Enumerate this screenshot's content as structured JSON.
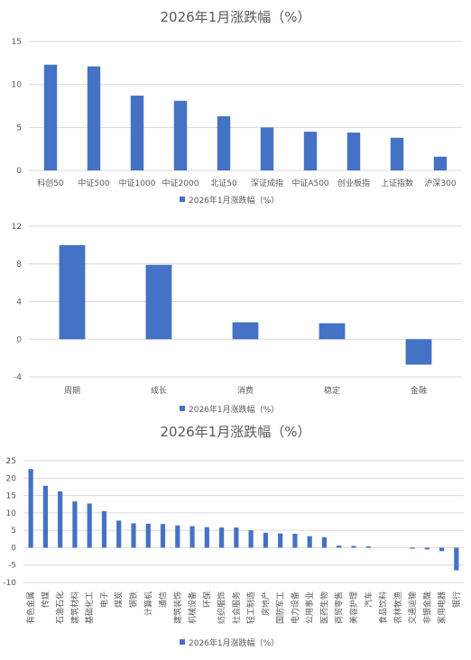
{
  "chart_data": [
    {
      "type": "bar",
      "title": "2026年1月涨跌幅（%）",
      "legend": {
        "label": "2026年1月涨跌幅（%）",
        "placement": "bottom",
        "color": "#4472c4"
      },
      "categories": [
        "科创50",
        "中证500",
        "中证1000",
        "中证2000",
        "北证50",
        "深证成指",
        "中证A500",
        "创业板指",
        "上证指数",
        "沪深300"
      ],
      "values": [
        12.3,
        12.1,
        8.7,
        8.1,
        6.3,
        5.0,
        4.5,
        4.4,
        3.8,
        1.6
      ],
      "ylim": [
        0,
        15
      ],
      "yticks": [
        0,
        5,
        10,
        15
      ],
      "grid": true
    },
    {
      "type": "bar",
      "title": "",
      "legend": {
        "label": "2026年1月涨跌幅（%）",
        "placement": "bottom",
        "color": "#4472c4"
      },
      "categories": [
        "周期",
        "成长",
        "消费",
        "稳定",
        "金融"
      ],
      "values": [
        10.0,
        7.9,
        1.8,
        1.7,
        -2.7
      ],
      "ylim": [
        -4,
        12
      ],
      "yticks": [
        -4,
        0,
        4,
        8,
        12
      ],
      "grid": true
    },
    {
      "type": "bar",
      "title": "2026年1月涨跌幅（%）",
      "legend": {
        "label": "2026年1月涨跌幅（%）",
        "placement": "bottom",
        "color": "#4472c4"
      },
      "categories": [
        "有色金属",
        "传媒",
        "石油石化",
        "建筑材料",
        "基础化工",
        "电子",
        "煤炭",
        "钢铁",
        "计算机",
        "通信",
        "建筑装饰",
        "机械设备",
        "环保",
        "纺织服饰",
        "社会服务",
        "轻工制造",
        "房地产",
        "国防军工",
        "电力设备",
        "公用事业",
        "医药生物",
        "商贸零售",
        "美容护理",
        "汽车",
        "食品饮料",
        "农林牧渔",
        "交通运输",
        "非银金融",
        "家用电器",
        "银行"
      ],
      "values": [
        22.6,
        17.8,
        16.2,
        13.3,
        12.7,
        10.5,
        7.8,
        7.0,
        6.9,
        6.8,
        6.4,
        6.2,
        5.9,
        5.8,
        5.8,
        5.0,
        4.3,
        4.1,
        4.0,
        3.3,
        3.0,
        0.6,
        0.5,
        0.4,
        0.0,
        0.0,
        -0.3,
        -0.5,
        -1.0,
        -6.5
      ],
      "ylim": [
        -10,
        25
      ],
      "yticks": [
        -10,
        -5,
        0,
        5,
        10,
        15,
        20,
        25
      ],
      "grid": true
    }
  ]
}
